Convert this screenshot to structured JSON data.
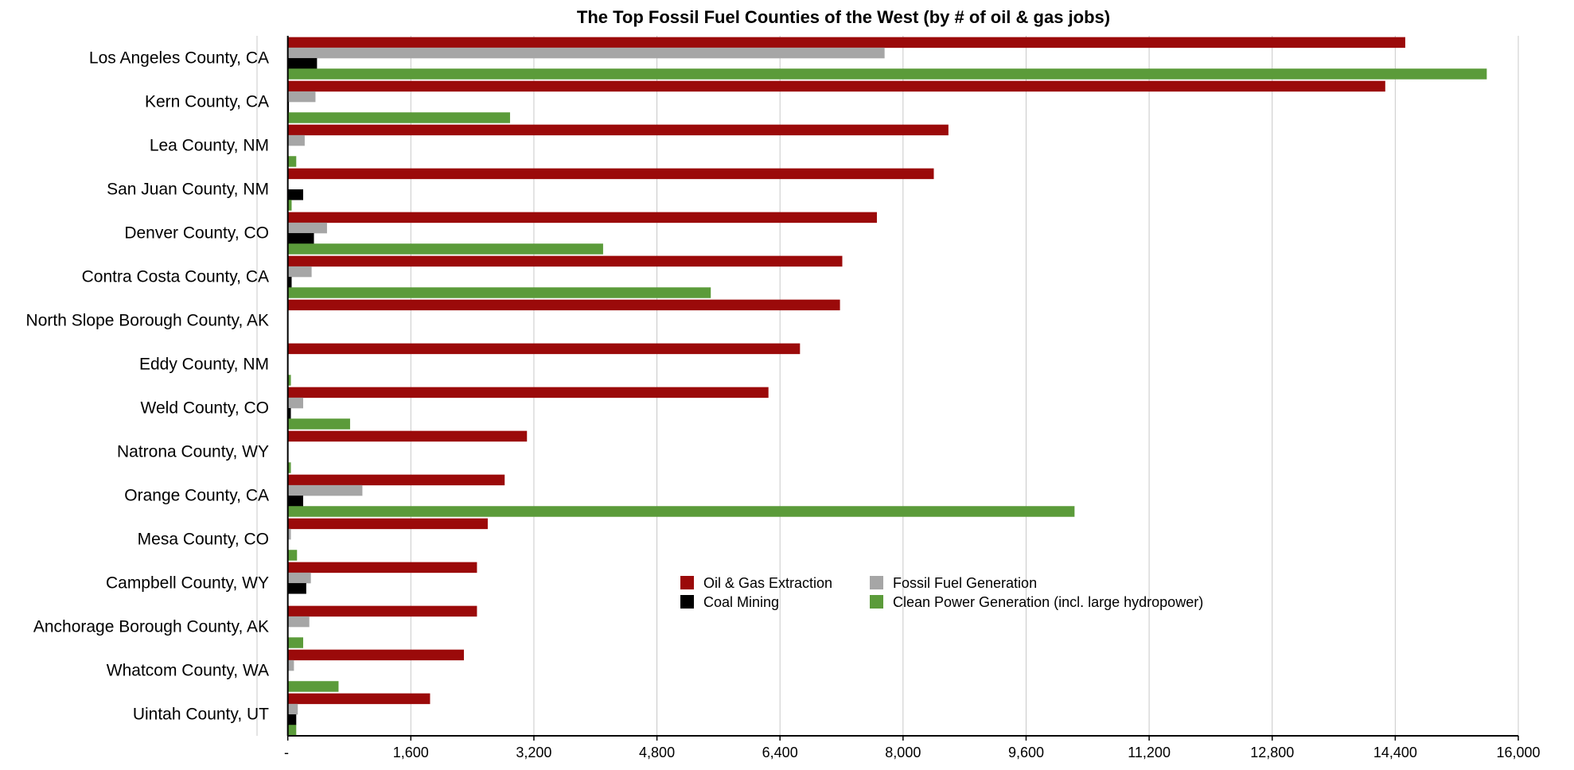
{
  "chart_data": {
    "type": "bar",
    "orientation": "horizontal",
    "title": "The Top Fossil Fuel Counties of the West (by # of oil & gas jobs)",
    "xlabel": "",
    "ylabel": "",
    "xlim": [
      -400,
      16000
    ],
    "x_ticks": [
      -400,
      0,
      1600,
      3200,
      4800,
      6400,
      8000,
      9600,
      11200,
      12800,
      14400,
      16000
    ],
    "x_tick_labels": [
      "-",
      "",
      "1,600",
      "3,200",
      "4,800",
      "6,400",
      "8,000",
      "9,600",
      "11,200",
      "12,800",
      "14,400",
      "16,000"
    ],
    "grid": "vertical",
    "legend_position": "center",
    "categories": [
      "Los Angeles County, CA",
      "Kern County, CA",
      "Lea County, NM",
      "San Juan County, NM",
      "Denver County, CO",
      "Contra Costa County, CA",
      "North Slope Borough County, AK",
      "Eddy County, NM",
      "Weld County, CO",
      "Natrona County, WY",
      "Orange County, CA",
      "Mesa County, CO",
      "Campbell County, WY",
      "Anchorage Borough County, AK",
      "Whatcom County, WA",
      "Uintah County, UT"
    ],
    "series": [
      {
        "name": "Oil & Gas Extraction",
        "color": "#9b0a0a",
        "values": [
          14530,
          14270,
          8590,
          8400,
          7660,
          7210,
          7180,
          6660,
          6250,
          3110,
          2820,
          2600,
          2460,
          2460,
          2290,
          1850
        ]
      },
      {
        "name": "Fossil Fuel Generation",
        "color": "#a6a6a6",
        "values": [
          7760,
          360,
          220,
          0,
          510,
          310,
          0,
          0,
          200,
          0,
          970,
          40,
          300,
          280,
          80,
          130
        ]
      },
      {
        "name": "Coal Mining",
        "color": "#000000",
        "values": [
          380,
          15,
          0,
          200,
          340,
          50,
          0,
          0,
          40,
          0,
          200,
          0,
          240,
          0,
          0,
          110
        ]
      },
      {
        "name": "Clean Power Generation (incl. large hydropower)",
        "color": "#5b9b3a",
        "values": [
          15590,
          2890,
          110,
          50,
          4100,
          5500,
          0,
          40,
          810,
          40,
          10230,
          120,
          0,
          200,
          660,
          110
        ]
      }
    ]
  }
}
